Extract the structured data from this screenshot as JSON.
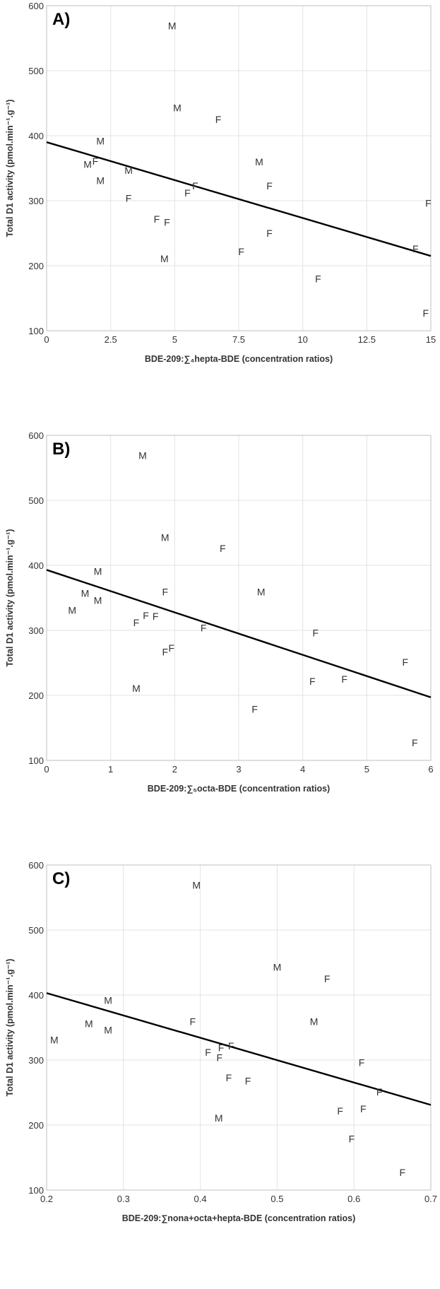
{
  "chart_data": [
    {
      "type": "scatter",
      "panel_label": "A)",
      "xlabel": "BDE-209:∑₄hepta-BDE (concentration ratios)",
      "ylabel": "Total D1 activity (pmol.min⁻¹.g⁻¹)",
      "xlim": [
        0,
        15
      ],
      "ylim": [
        100,
        600
      ],
      "xticks": [
        "0",
        "2.5",
        "5",
        "7.5",
        "10",
        "12.5",
        "15"
      ],
      "yticks": [
        "100",
        "200",
        "300",
        "400",
        "500",
        "600"
      ],
      "x_tick_values": [
        0,
        2.5,
        5,
        7.5,
        10,
        12.5,
        15
      ],
      "y_tick_values": [
        100,
        200,
        300,
        400,
        500,
        600
      ],
      "trendline": {
        "x": [
          0,
          15
        ],
        "y": [
          390,
          215
        ]
      },
      "points": [
        {
          "x": 4.9,
          "y": 569,
          "label": "M"
        },
        {
          "x": 5.1,
          "y": 443,
          "label": "M"
        },
        {
          "x": 6.7,
          "y": 425,
          "label": "F"
        },
        {
          "x": 2.1,
          "y": 392,
          "label": "M"
        },
        {
          "x": 1.6,
          "y": 356,
          "label": "M"
        },
        {
          "x": 1.9,
          "y": 361,
          "label": "F"
        },
        {
          "x": 3.2,
          "y": 347,
          "label": "M"
        },
        {
          "x": 8.3,
          "y": 360,
          "label": "M"
        },
        {
          "x": 2.1,
          "y": 331,
          "label": "M"
        },
        {
          "x": 8.7,
          "y": 323,
          "label": "F"
        },
        {
          "x": 5.8,
          "y": 323,
          "label": "F"
        },
        {
          "x": 5.5,
          "y": 312,
          "label": "F"
        },
        {
          "x": 3.2,
          "y": 304,
          "label": "F"
        },
        {
          "x": 14.9,
          "y": 296,
          "label": "F"
        },
        {
          "x": 4.3,
          "y": 272,
          "label": "F"
        },
        {
          "x": 4.7,
          "y": 267,
          "label": "F"
        },
        {
          "x": 8.7,
          "y": 250,
          "label": "F"
        },
        {
          "x": 14.4,
          "y": 226,
          "label": "F"
        },
        {
          "x": 7.6,
          "y": 222,
          "label": "F"
        },
        {
          "x": 4.6,
          "y": 211,
          "label": "M"
        },
        {
          "x": 10.6,
          "y": 180,
          "label": "F"
        },
        {
          "x": 14.8,
          "y": 127,
          "label": "F"
        }
      ]
    },
    {
      "type": "scatter",
      "panel_label": "B)",
      "xlabel": "BDE-209:∑₅octa-BDE (concentration ratios)",
      "ylabel": "Total D1 activity (pmol.min⁻¹.g⁻¹)",
      "xlim": [
        0,
        6
      ],
      "ylim": [
        100,
        600
      ],
      "xticks": [
        "0",
        "1",
        "2",
        "3",
        "4",
        "5",
        "6"
      ],
      "yticks": [
        "100",
        "200",
        "300",
        "400",
        "500",
        "600"
      ],
      "x_tick_values": [
        0,
        1,
        2,
        3,
        4,
        5,
        6
      ],
      "y_tick_values": [
        100,
        200,
        300,
        400,
        500,
        600
      ],
      "trendline": {
        "x": [
          0,
          6
        ],
        "y": [
          393,
          197
        ]
      },
      "points": [
        {
          "x": 1.5,
          "y": 569,
          "label": "M"
        },
        {
          "x": 1.85,
          "y": 443,
          "label": "M"
        },
        {
          "x": 2.75,
          "y": 426,
          "label": "F"
        },
        {
          "x": 0.8,
          "y": 391,
          "label": "M"
        },
        {
          "x": 0.6,
          "y": 357,
          "label": "M"
        },
        {
          "x": 1.85,
          "y": 359,
          "label": "F"
        },
        {
          "x": 3.35,
          "y": 359,
          "label": "M"
        },
        {
          "x": 0.8,
          "y": 346,
          "label": "M"
        },
        {
          "x": 0.4,
          "y": 331,
          "label": "M"
        },
        {
          "x": 1.55,
          "y": 323,
          "label": "F"
        },
        {
          "x": 1.7,
          "y": 322,
          "label": "F"
        },
        {
          "x": 1.4,
          "y": 312,
          "label": "F"
        },
        {
          "x": 2.45,
          "y": 304,
          "label": "F"
        },
        {
          "x": 4.2,
          "y": 296,
          "label": "F"
        },
        {
          "x": 1.95,
          "y": 273,
          "label": "F"
        },
        {
          "x": 1.85,
          "y": 267,
          "label": "F"
        },
        {
          "x": 5.6,
          "y": 251,
          "label": "F"
        },
        {
          "x": 4.65,
          "y": 225,
          "label": "F"
        },
        {
          "x": 4.15,
          "y": 222,
          "label": "F"
        },
        {
          "x": 1.4,
          "y": 211,
          "label": "M"
        },
        {
          "x": 3.25,
          "y": 179,
          "label": "F"
        },
        {
          "x": 5.75,
          "y": 127,
          "label": "F"
        }
      ]
    },
    {
      "type": "scatter",
      "panel_label": "C)",
      "xlabel": "BDE-209:∑nona+octa+hepta-BDE (concentration ratios)",
      "ylabel": "Total D1 activity (pmol.min⁻¹.g⁻¹)",
      "xlim": [
        0.2,
        0.7
      ],
      "ylim": [
        100,
        600
      ],
      "xticks": [
        "0.2",
        "0.3",
        "0.4",
        "0.5",
        "0.6",
        "0.7"
      ],
      "yticks": [
        "100",
        "200",
        "300",
        "400",
        "500",
        "600"
      ],
      "x_tick_values": [
        0.2,
        0.3,
        0.4,
        0.5,
        0.6,
        0.7
      ],
      "y_tick_values": [
        100,
        200,
        300,
        400,
        500,
        600
      ],
      "trendline": {
        "x": [
          0.2,
          0.7
        ],
        "y": [
          403,
          231
        ]
      },
      "points": [
        {
          "x": 0.395,
          "y": 569,
          "label": "M"
        },
        {
          "x": 0.5,
          "y": 443,
          "label": "M"
        },
        {
          "x": 0.565,
          "y": 425,
          "label": "F"
        },
        {
          "x": 0.28,
          "y": 392,
          "label": "M"
        },
        {
          "x": 0.255,
          "y": 356,
          "label": "M"
        },
        {
          "x": 0.39,
          "y": 359,
          "label": "F"
        },
        {
          "x": 0.548,
          "y": 359,
          "label": "M"
        },
        {
          "x": 0.28,
          "y": 346,
          "label": "M"
        },
        {
          "x": 0.21,
          "y": 331,
          "label": "M"
        },
        {
          "x": 0.44,
          "y": 322,
          "label": "F"
        },
        {
          "x": 0.427,
          "y": 319,
          "label": "F"
        },
        {
          "x": 0.41,
          "y": 312,
          "label": "F"
        },
        {
          "x": 0.425,
          "y": 304,
          "label": "F"
        },
        {
          "x": 0.61,
          "y": 296,
          "label": "F"
        },
        {
          "x": 0.437,
          "y": 273,
          "label": "F"
        },
        {
          "x": 0.462,
          "y": 268,
          "label": "F"
        },
        {
          "x": 0.633,
          "y": 251,
          "label": "F"
        },
        {
          "x": 0.612,
          "y": 225,
          "label": "F"
        },
        {
          "x": 0.582,
          "y": 222,
          "label": "F"
        },
        {
          "x": 0.424,
          "y": 211,
          "label": "M"
        },
        {
          "x": 0.597,
          "y": 179,
          "label": "F"
        },
        {
          "x": 0.663,
          "y": 127,
          "label": "F"
        }
      ]
    }
  ]
}
